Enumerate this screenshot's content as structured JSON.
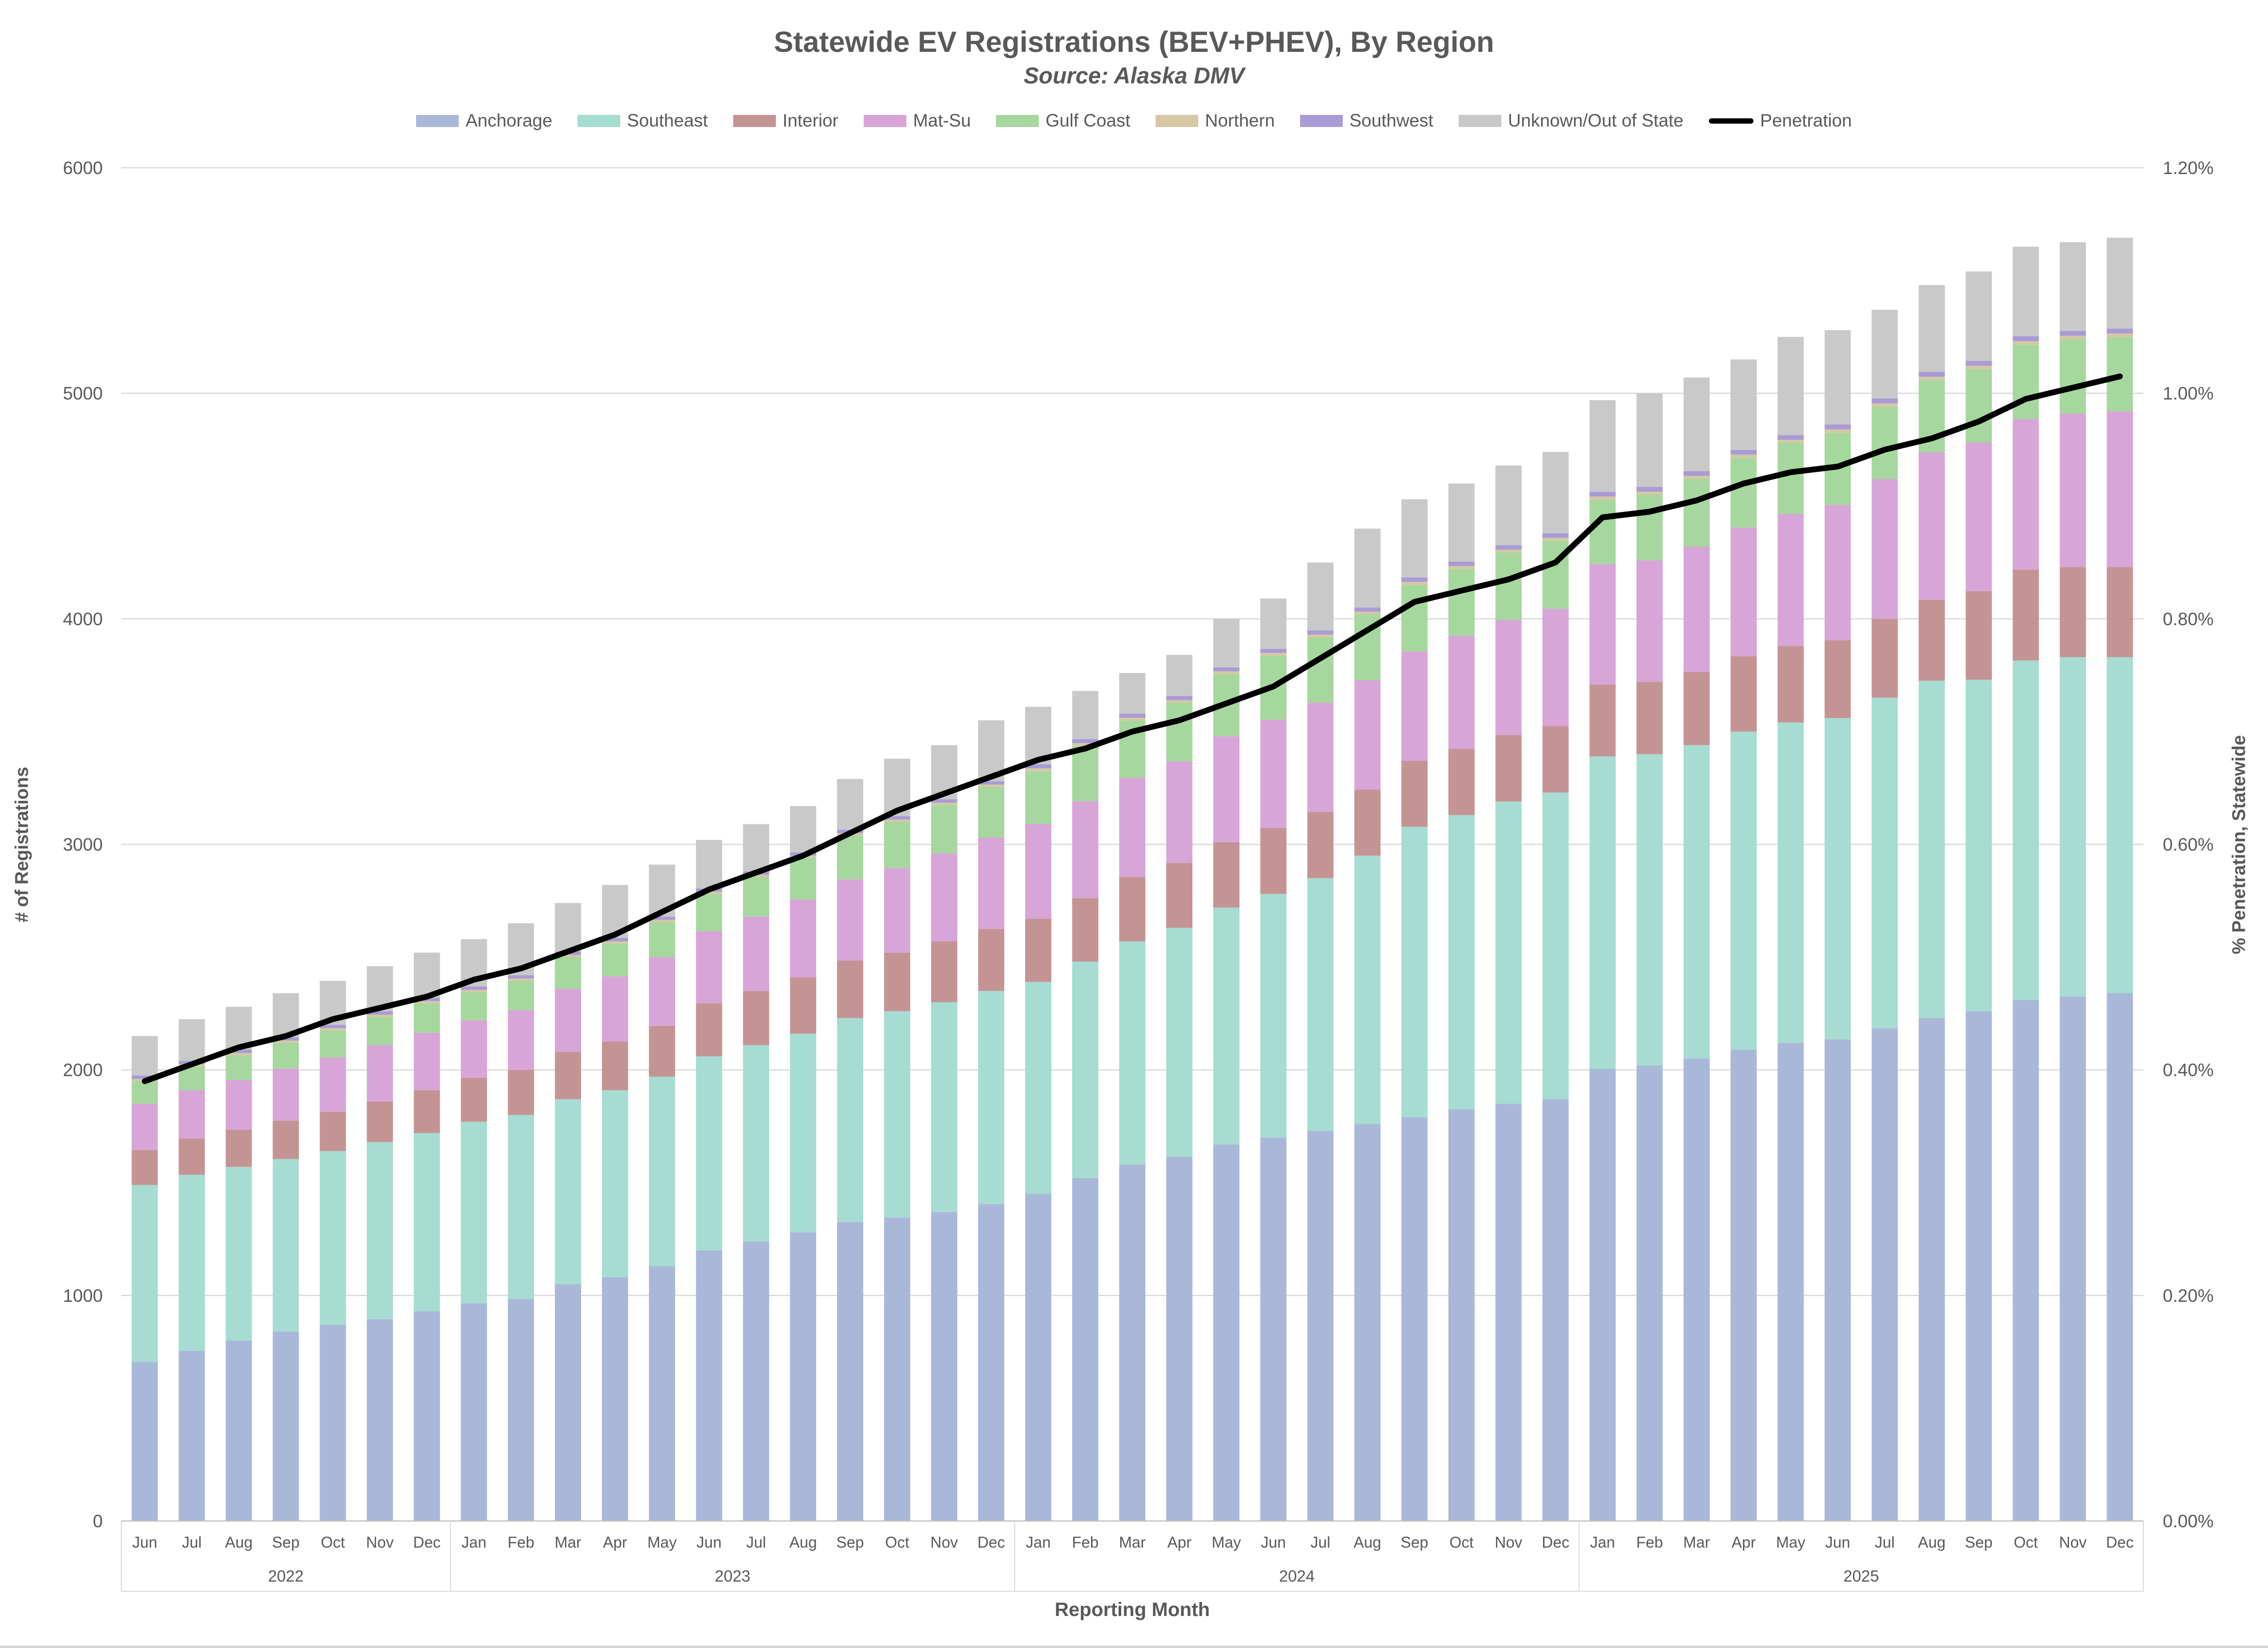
{
  "page": {
    "title": "Statewide EV Registrations (BEV+PHEV), By Region",
    "subtitle": "Source: Alaska DMV"
  },
  "chart_data": {
    "type": "bar",
    "stacked": true,
    "title": "Statewide EV Registrations (BEV+PHEV), By Region",
    "subtitle": "Source: Alaska DMV",
    "xlabel": "Reporting Month",
    "ylabel_left": "# of Registrations",
    "ylabel_right": "% Penetration, Statewide",
    "grid": true,
    "legend_position": "top",
    "left_axis": {
      "min": 0,
      "max": 6000,
      "step": 1000
    },
    "right_axis": {
      "min": 0,
      "max": 1.2,
      "step": 0.2,
      "suffix": "%",
      "decimals": 2
    },
    "colors": {
      "gridline": "#d9d9d9",
      "axis_line": "#bfbfbf",
      "band_line": "#d9d9d9",
      "text": "#595959"
    },
    "x_categories": [
      "Jun",
      "Jul",
      "Aug",
      "Sep",
      "Oct",
      "Nov",
      "Dec",
      "Jan",
      "Feb",
      "Mar",
      "Apr",
      "May",
      "Jun",
      "Jul",
      "Aug",
      "Sep",
      "Oct",
      "Nov",
      "Dec",
      "Jan",
      "Feb",
      "Mar",
      "Apr",
      "May",
      "Jun",
      "Jul",
      "Aug",
      "Sep",
      "Oct",
      "Nov",
      "Dec",
      "Jan",
      "Feb",
      "Mar",
      "Apr",
      "May",
      "Jun",
      "Jul",
      "Aug",
      "Sep",
      "Oct",
      "Nov",
      "Dec"
    ],
    "year_groups": [
      {
        "year": "2022",
        "months": 7
      },
      {
        "year": "2023",
        "months": 12
      },
      {
        "year": "2024",
        "months": 12
      },
      {
        "year": "2025",
        "months": 12
      }
    ],
    "series": [
      {
        "name": "Anchorage",
        "color": "#a9b8d8",
        "values": [
          705,
          755,
          800,
          840,
          870,
          895,
          930,
          965,
          985,
          1050,
          1080,
          1130,
          1200,
          1240,
          1280,
          1325,
          1345,
          1370,
          1405,
          1450,
          1520,
          1580,
          1615,
          1670,
          1700,
          1730,
          1760,
          1790,
          1825,
          1850,
          1870,
          2005,
          2020,
          2050,
          2090,
          2120,
          2135,
          2185,
          2230,
          2260,
          2310,
          2325,
          2340
        ]
      },
      {
        "name": "Southeast",
        "color": "#a6dcd2",
        "values": [
          785,
          780,
          770,
          765,
          770,
          785,
          790,
          805,
          815,
          820,
          830,
          840,
          860,
          870,
          880,
          905,
          915,
          930,
          945,
          940,
          960,
          990,
          1015,
          1050,
          1080,
          1120,
          1190,
          1288,
          1305,
          1340,
          1360,
          1385,
          1380,
          1390,
          1410,
          1420,
          1425,
          1465,
          1495,
          1470,
          1505,
          1505,
          1490
        ]
      },
      {
        "name": "Interior",
        "color": "#c49494",
        "values": [
          155,
          160,
          165,
          170,
          175,
          180,
          190,
          195,
          200,
          210,
          215,
          225,
          235,
          240,
          250,
          255,
          260,
          270,
          275,
          280,
          282,
          285,
          288,
          290,
          292,
          293,
          293,
          293,
          294,
          295,
          295,
          319,
          320,
          325,
          334,
          340,
          345,
          350,
          360,
          393,
          403,
          400,
          400
        ]
      },
      {
        "name": "Mat-Su",
        "color": "#d8a5d8",
        "values": [
          205,
          215,
          220,
          230,
          240,
          250,
          255,
          255,
          265,
          280,
          290,
          305,
          320,
          330,
          345,
          360,
          375,
          390,
          405,
          420,
          430,
          440,
          450,
          470,
          480,
          485,
          485,
          485,
          500,
          510,
          520,
          534,
          540,
          555,
          570,
          585,
          600,
          620,
          653,
          659,
          668,
          680,
          690
        ]
      },
      {
        "name": "Gulf Coast",
        "color": "#a6d79e",
        "values": [
          100,
          105,
          110,
          115,
          120,
          125,
          130,
          125,
          130,
          140,
          145,
          155,
          165,
          175,
          185,
          195,
          205,
          215,
          225,
          235,
          245,
          255,
          260,
          275,
          285,
          290,
          292,
          294,
          296,
          298,
          300,
          285,
          290,
          300,
          310,
          315,
          320,
          320,
          320,
          325,
          330,
          330,
          330
        ]
      },
      {
        "name": "Northern",
        "color": "#d5c8a3",
        "values": [
          10,
          10,
          10,
          10,
          10,
          10,
          10,
          10,
          10,
          10,
          10,
          10,
          10,
          10,
          10,
          10,
          10,
          10,
          10,
          12,
          12,
          12,
          12,
          12,
          12,
          12,
          12,
          14,
          14,
          14,
          14,
          14,
          14,
          14,
          14,
          14,
          15,
          15,
          15,
          15,
          15,
          15,
          15
        ]
      },
      {
        "name": "Southwest",
        "color": "#a99bd5",
        "values": [
          15,
          15,
          15,
          15,
          15,
          15,
          15,
          15,
          15,
          15,
          15,
          15,
          15,
          15,
          15,
          15,
          15,
          15,
          15,
          18,
          18,
          18,
          18,
          18,
          18,
          18,
          18,
          20,
          20,
          20,
          20,
          21,
          21,
          21,
          21,
          21,
          22,
          22,
          22,
          22,
          22,
          22,
          22
        ]
      },
      {
        "name": "Unknown/Out of State",
        "color": "#c9c9c9",
        "values": [
          175,
          185,
          190,
          195,
          195,
          200,
          200,
          210,
          230,
          215,
          235,
          230,
          215,
          210,
          205,
          225,
          255,
          240,
          270,
          255,
          213,
          180,
          182,
          215,
          223,
          302,
          350,
          346,
          346,
          353,
          361,
          407,
          415,
          415,
          401,
          435,
          418,
          393,
          385,
          396,
          397,
          393,
          403
        ]
      }
    ],
    "line_series": {
      "name": "Penetration",
      "color": "#000000",
      "axis": "right",
      "values_pct": [
        0.39,
        0.405,
        0.42,
        0.43,
        0.445,
        0.455,
        0.465,
        0.48,
        0.49,
        0.505,
        0.52,
        0.54,
        0.56,
        0.575,
        0.59,
        0.61,
        0.63,
        0.645,
        0.66,
        0.675,
        0.685,
        0.7,
        0.71,
        0.725,
        0.74,
        0.765,
        0.79,
        0.815,
        0.825,
        0.835,
        0.85,
        0.89,
        0.895,
        0.905,
        0.92,
        0.93,
        0.935,
        0.95,
        0.96,
        0.975,
        0.995,
        1.005,
        1.015
      ]
    }
  }
}
